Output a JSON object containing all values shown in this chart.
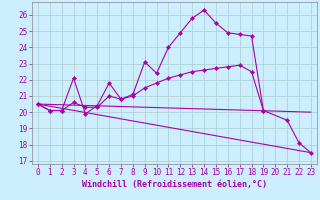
{
  "xlabel": "Windchill (Refroidissement éolien,°C)",
  "background_color": "#cceeff",
  "grid_color": "#aacccc",
  "line_color": "#aa00aa",
  "x_ticks": [
    0,
    1,
    2,
    3,
    4,
    5,
    6,
    7,
    8,
    9,
    10,
    11,
    12,
    13,
    14,
    15,
    16,
    17,
    18,
    19,
    20,
    21,
    22,
    23
  ],
  "y_ticks": [
    17,
    18,
    19,
    20,
    21,
    22,
    23,
    24,
    25,
    26
  ],
  "ylim": [
    16.8,
    26.8
  ],
  "xlim": [
    -0.5,
    23.5
  ],
  "line1_x": [
    0,
    1,
    2,
    3,
    4,
    5,
    6,
    7,
    8,
    9,
    10,
    11,
    12,
    13,
    14,
    15,
    16,
    17,
    18,
    19,
    21,
    22,
    23
  ],
  "line1_y": [
    20.5,
    20.1,
    20.1,
    22.1,
    19.9,
    20.4,
    21.8,
    20.8,
    21.1,
    23.1,
    22.4,
    24.0,
    24.9,
    25.8,
    26.3,
    25.5,
    24.9,
    24.8,
    24.7,
    20.1,
    19.5,
    18.1,
    17.5
  ],
  "line2_x": [
    0,
    1,
    2,
    3,
    4,
    5,
    6,
    7,
    8,
    9,
    10,
    11,
    12,
    13,
    14,
    15,
    16,
    17,
    18,
    19
  ],
  "line2_y": [
    20.5,
    20.1,
    20.1,
    20.6,
    20.3,
    20.3,
    21.0,
    20.8,
    21.0,
    21.5,
    21.8,
    22.1,
    22.3,
    22.5,
    22.6,
    22.7,
    22.8,
    22.9,
    22.5,
    20.1
  ],
  "line3_x": [
    0,
    23
  ],
  "line3_y": [
    20.5,
    20.0
  ],
  "line4_x": [
    0,
    23
  ],
  "line4_y": [
    20.5,
    17.5
  ],
  "marker": "D",
  "marker_size": 2.2,
  "linewidth": 0.8,
  "xlabel_fontsize": 6,
  "tick_fontsize": 5.5
}
